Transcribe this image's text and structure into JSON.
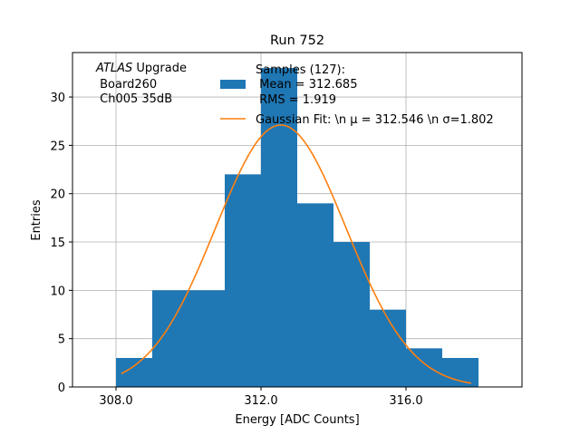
{
  "chart_data": {
    "type": "bar",
    "title": "Run 752",
    "xlabel": "Energy [ADC Counts]",
    "ylabel": "Entries",
    "xlim": [
      306.8,
      319.2
    ],
    "ylim": [
      0,
      34.6
    ],
    "x_ticks": [
      308.0,
      312.0,
      316.0
    ],
    "x_tick_labels": [
      "308.0",
      "312.0",
      "316.0"
    ],
    "y_ticks": [
      0,
      5,
      10,
      15,
      20,
      25,
      30
    ],
    "y_tick_labels": [
      "0",
      "5",
      "10",
      "15",
      "20",
      "25",
      "30"
    ],
    "grid": true,
    "bin_edges": [
      308,
      309,
      310,
      311,
      312,
      313,
      314,
      315,
      316,
      317,
      318
    ],
    "histogram_counts": [
      3,
      10,
      10,
      22,
      33,
      19,
      15,
      8,
      4,
      3
    ],
    "fit": {
      "type": "gaussian",
      "mu": 312.546,
      "sigma": 1.802,
      "amplitude": 27.1,
      "x_range": [
        308.15,
        317.8
      ]
    },
    "colors": {
      "bars": "#1f77b4",
      "fit_line": "#ff7f0e",
      "grid": "#b0b0b0"
    },
    "annotation_lines": [
      "ATLAS Upgrade",
      " Board260",
      " Ch005 35dB"
    ],
    "legend": {
      "location": "top-right",
      "entries": [
        {
          "label_lines": [
            "Samples (127):",
            " Mean = 312.685",
            " RMS = 1.919"
          ],
          "kind": "patch"
        },
        {
          "label_lines": [
            "Gaussian Fit: \\n μ = 312.546 \\n σ=1.802"
          ],
          "kind": "line"
        }
      ]
    }
  }
}
